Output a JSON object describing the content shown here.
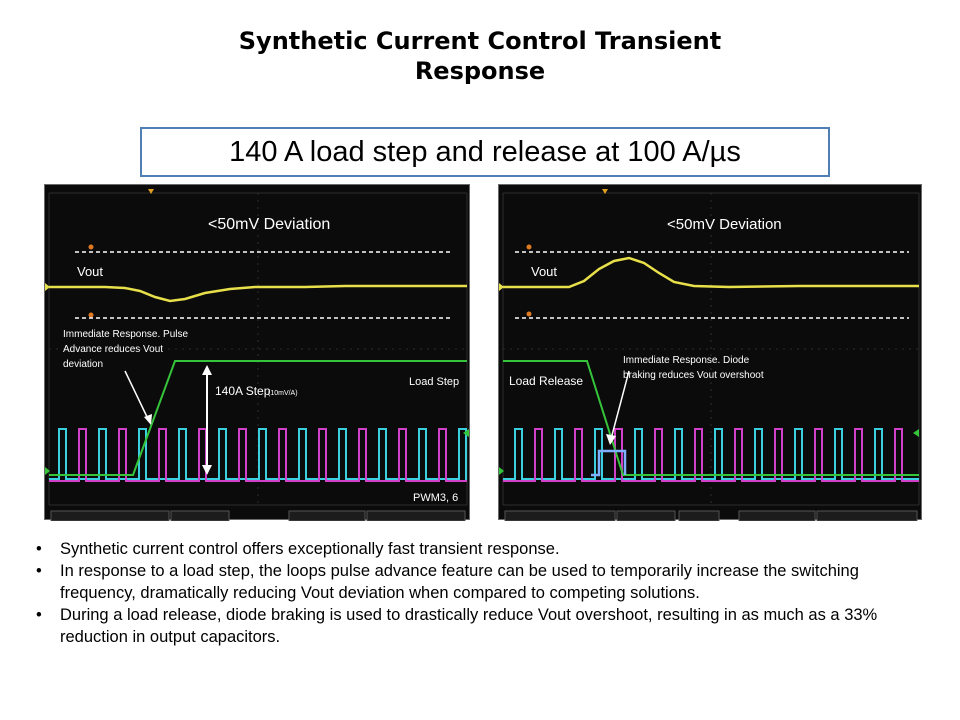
{
  "slide": {
    "title_line1": "Synthetic Current Control Transient",
    "title_line2": "Response",
    "subtitle": "140 A load step and release at 100 A/µs"
  },
  "scope_left": {
    "deviation_label": "<50mV Deviation",
    "vout_label": "Vout",
    "annotation_line1": "Immediate Response. Pulse",
    "annotation_line2": "Advance reduces Vout",
    "annotation_line3": "deviation",
    "step_label": "140A Step",
    "step_scale": "(10mV/A)",
    "load_label": "Load Step",
    "pwm_label": "PWM3, 6",
    "colors": {
      "vout": "#e8e04a",
      "load": "#35c43a",
      "pwm_cyan": "#3ad0e0",
      "pwm_magenta": "#d040c8",
      "grid": "#3a3a3a"
    }
  },
  "scope_right": {
    "deviation_label": "<50mV Deviation",
    "vout_label": "Vout",
    "annotation_line1": "Immediate Response. Diode",
    "annotation_line2": "braking reduces Vout overshoot",
    "load_label": "Load Release"
  },
  "bullets": [
    "Synthetic current control offers exceptionally fast transient response.",
    "In response to a load step, the loops pulse advance feature can be used to temporarily increase the switching frequency, dramatically reducing Vout deviation when compared to competing solutions.",
    "During a load release, diode braking is used to drastically reduce Vout overshoot, resulting in as much  as a 33% reduction in output capacitors."
  ]
}
